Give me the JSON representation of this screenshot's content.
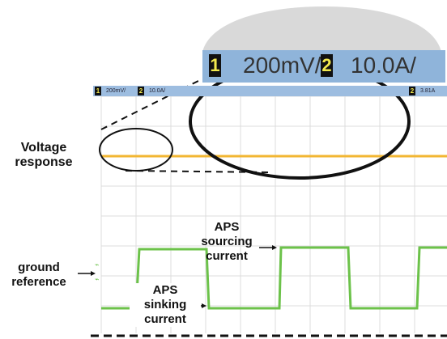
{
  "callout": {
    "ch1_number": "1",
    "ch1_scale": "200mV/",
    "ch2_number": "2",
    "ch2_scale": "10.0A/"
  },
  "status_bar": {
    "ch1_number": "1",
    "ch1_scale": "200mV/",
    "ch2_number": "2",
    "ch2_scale": "10.0A/",
    "ch2_right_number": "2",
    "ch2_right_value": "3.81A"
  },
  "annotations": {
    "voltage_response": "Voltage\nresponse",
    "ground_reference": "ground\nreference",
    "aps_sourcing": "APS\nsourcing\ncurrent",
    "aps_sinking": "APS\nsinking\ncurrent"
  },
  "colors": {
    "voltage_trace": "#f2b632",
    "current_trace": "#6cc24a",
    "callout_blue": "#8fb4da",
    "grid": "#d8d8d8"
  }
}
